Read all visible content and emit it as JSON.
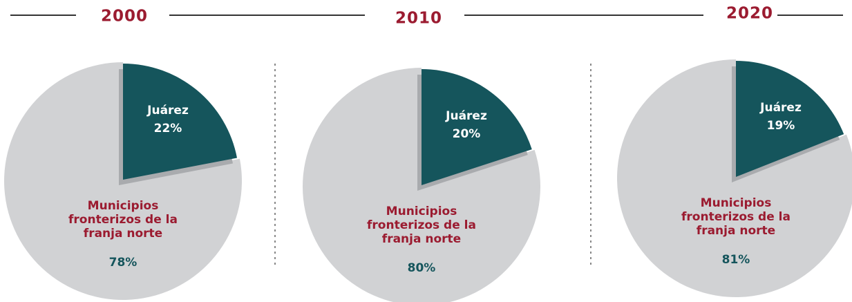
{
  "chart_data": [
    {
      "type": "pie",
      "title": "2000",
      "categories": [
        "Juárez",
        "Municipios fronterizos de la franja norte"
      ],
      "values": [
        22,
        78
      ],
      "value_labels": [
        "22%",
        "78%"
      ],
      "colors": [
        "#15555c",
        "#d1d2d4"
      ]
    },
    {
      "type": "pie",
      "title": "2010",
      "categories": [
        "Juárez",
        "Municipios fronterizos de la franja norte"
      ],
      "values": [
        20,
        80
      ],
      "value_labels": [
        "20%",
        "80%"
      ],
      "colors": [
        "#15555c",
        "#d1d2d4"
      ]
    },
    {
      "type": "pie",
      "title": "2020",
      "categories": [
        "Juárez",
        "Municipios fronterizos de la franja norte"
      ],
      "values": [
        19,
        81
      ],
      "value_labels": [
        "19%",
        "81%"
      ],
      "colors": [
        "#15555c",
        "#d1d2d4"
      ]
    }
  ]
}
